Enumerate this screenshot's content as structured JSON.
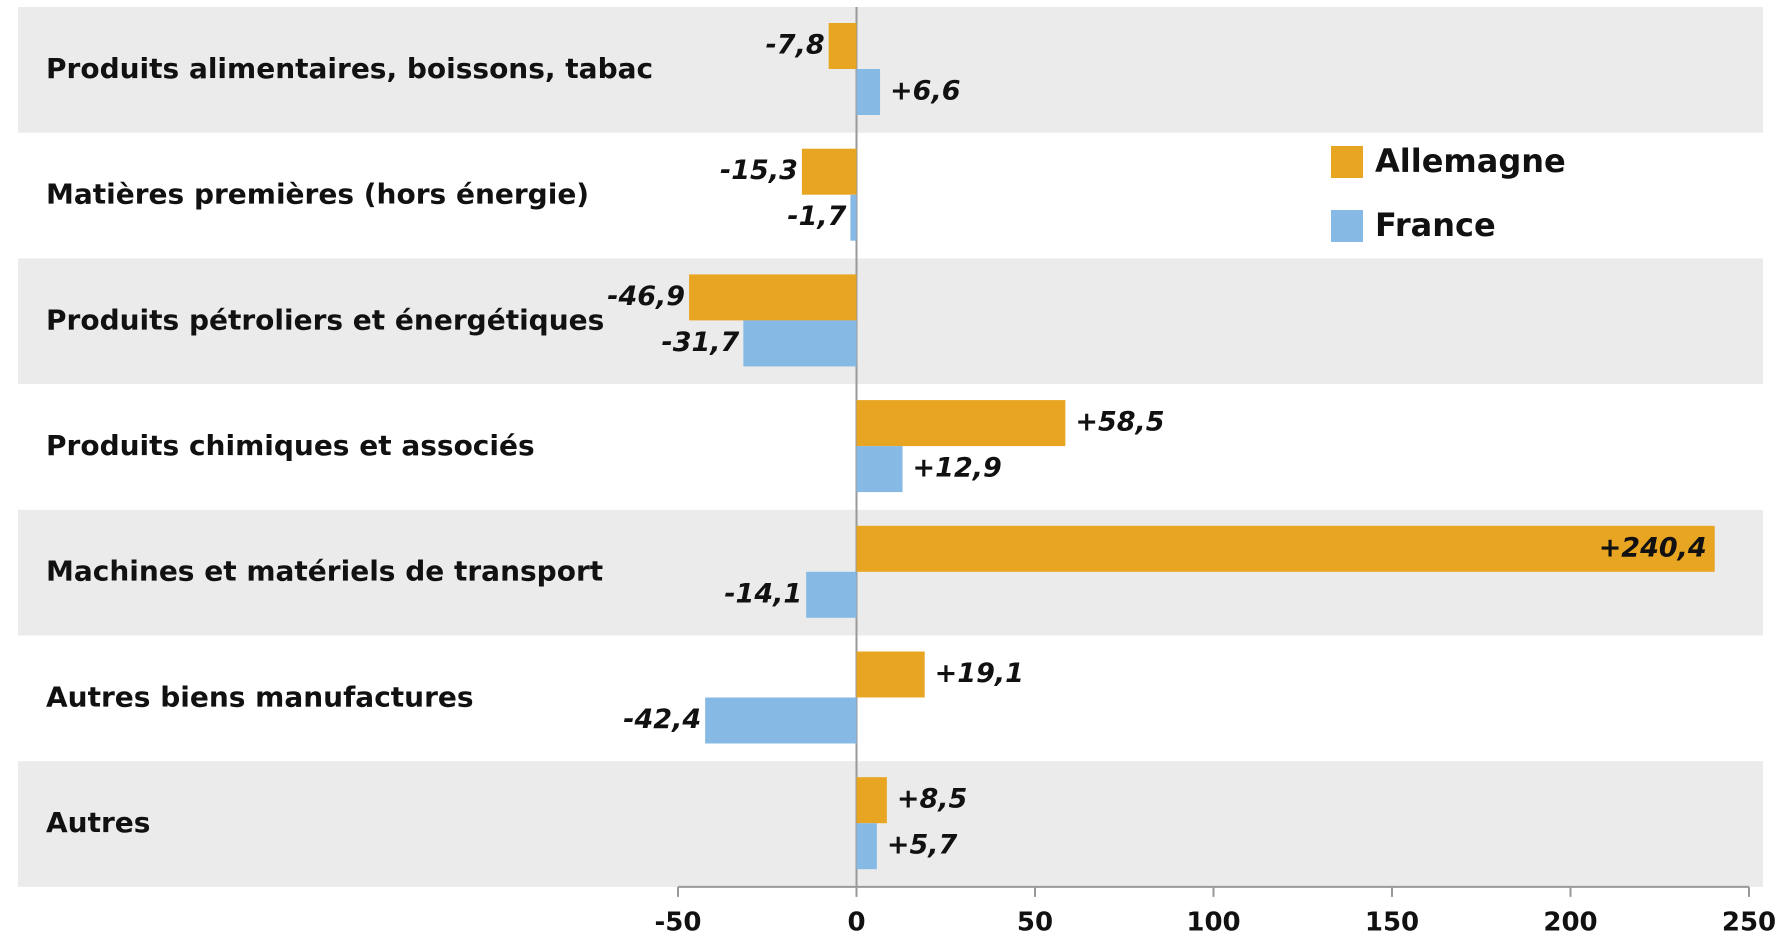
{
  "chart_data": {
    "type": "barh",
    "categories": [
      "Produits alimentaires, boissons, tabac",
      "Matières premières (hors énergie)",
      "Produits pétroliers et énergétiques",
      "Produits chimiques et associés",
      "Machines et matériels de transport",
      "Autres biens manufactures",
      "Autres"
    ],
    "series": [
      {
        "name": "Allemagne",
        "color": "#e8a521",
        "values": [
          -7.8,
          -15.3,
          -46.9,
          58.5,
          240.4,
          19.1,
          8.5
        ],
        "value_labels": [
          "-7,8",
          "-15,3",
          "-46,9",
          "+58,5",
          "+240,4",
          "+19,1",
          "+8,5"
        ]
      },
      {
        "name": "France",
        "color": "#86b9e4",
        "values": [
          6.6,
          -1.7,
          -31.7,
          12.9,
          -14.1,
          -42.4,
          5.7
        ],
        "value_labels": [
          "+6,6",
          "-1,7",
          "-31,7",
          "+12,9",
          "-14,1",
          "-42,4",
          "+5,7"
        ]
      }
    ],
    "xlim": [
      -50,
      250
    ],
    "xticks": [
      -50,
      0,
      50,
      100,
      150,
      200,
      250
    ],
    "legend": "upper right"
  }
}
